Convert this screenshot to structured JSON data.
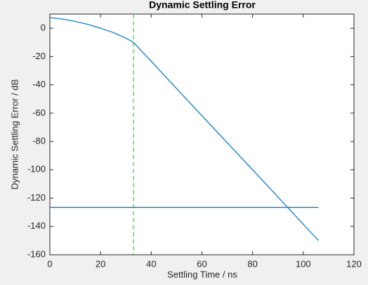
{
  "chart_data": {
    "type": "line",
    "title": "Dynamic Settling Error",
    "x_label": "Settling Time  / ns",
    "y_label": "Dynamic Settling Error  / dB",
    "xlim": [
      0,
      120
    ],
    "xticks": [
      0,
      20,
      40,
      60,
      80,
      100,
      120
    ],
    "ylim": [
      -160,
      10
    ],
    "yticks": [
      -160,
      -140,
      -120,
      -100,
      -80,
      -60,
      -40,
      -20,
      0
    ],
    "series": [
      {
        "color": "#0072bd",
        "x": [
          0,
          5,
          10,
          15,
          20,
          25,
          30,
          33,
          40,
          60,
          80,
          94,
          106
        ],
        "values": [
          7.5,
          6.5,
          4.8,
          2.7,
          0,
          -3,
          -7,
          -10,
          -23.4,
          -61.8,
          -100,
          -126.9,
          -150
        ]
      },
      {
        "color": "#0072bd",
        "x": [
          0,
          106
        ],
        "values": [
          -126.5,
          -126.5
        ]
      }
    ],
    "vline": {
      "x": 33,
      "color": "#00cc00"
    }
  }
}
